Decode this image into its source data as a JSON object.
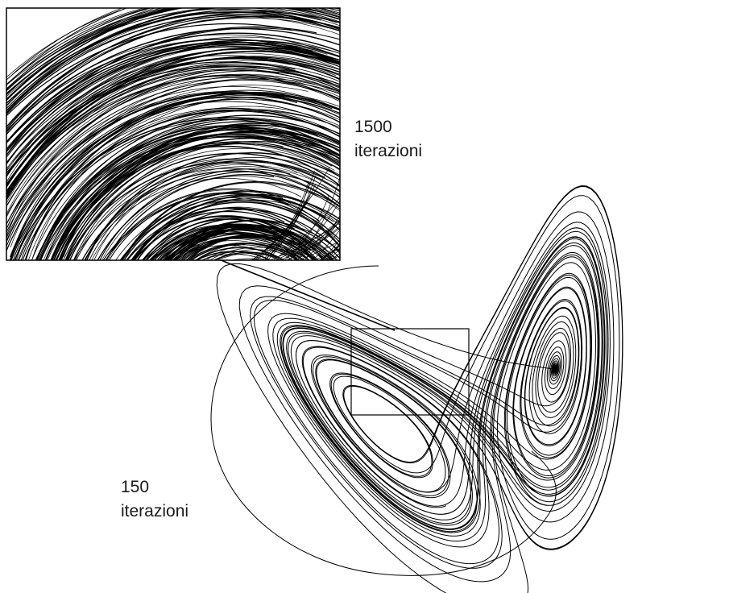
{
  "labels": {
    "zoom": {
      "count": "1500",
      "unit": "iterazioni"
    },
    "full": {
      "count": "150",
      "unit": "iterazioni"
    }
  },
  "colors": {
    "background": "#ffffff",
    "stroke": "#000000",
    "text": "#1a1a1a"
  }
}
